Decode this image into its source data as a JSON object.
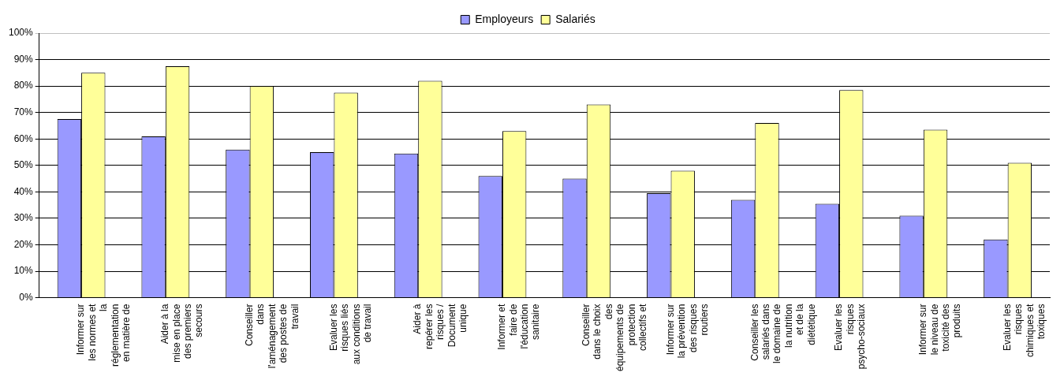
{
  "chart_data": {
    "type": "bar",
    "categories": [
      "Informer sur les normes et la réglementation en matière de",
      "Aider à la mise en place des premiers secours",
      "Conseiller dans l'aménagement des postes de travail",
      "Evaluer les risques liés aux conditions de travail",
      "Aider à repérer les risques / Document unique",
      "Informer et faire de l'éducation sanitaire",
      "Conseiller dans le choix des équipements de protection collectifs et",
      "Informer sur la prévention des risques routiers",
      "Conseiller les salariés dans le domaine de la nutrition et de la diététique",
      "Evaluer les risques psycho-sociaux",
      "Informer sur le niveau de toxicité des produits",
      "Evaluer les risques chimiques et toxiques"
    ],
    "series": [
      {
        "name": "Employeurs",
        "color": "#9999ff",
        "values": [
          67.5,
          61,
          56,
          55,
          54.5,
          46,
          45,
          39.5,
          37,
          35.5,
          31,
          22
        ]
      },
      {
        "name": "Salariés",
        "color": "#ffff99",
        "values": [
          85,
          87.5,
          80,
          77.5,
          82,
          63,
          73,
          48,
          66,
          78.5,
          63.5,
          51
        ]
      }
    ],
    "ylim": [
      0,
      100
    ],
    "yticks": [
      {
        "value": 0,
        "label": "0%"
      },
      {
        "value": 10,
        "label": "10%"
      },
      {
        "value": 20,
        "label": "20%"
      },
      {
        "value": 30,
        "label": "30%"
      },
      {
        "value": 40,
        "label": "40%"
      },
      {
        "value": 50,
        "label": "50%"
      },
      {
        "value": 60,
        "label": "60%"
      },
      {
        "value": 70,
        "label": "70%"
      },
      {
        "value": 80,
        "label": "80%"
      },
      {
        "value": 90,
        "label": "90%"
      },
      {
        "value": 100,
        "label": "100%"
      }
    ],
    "grid": "y",
    "legend": "top"
  }
}
